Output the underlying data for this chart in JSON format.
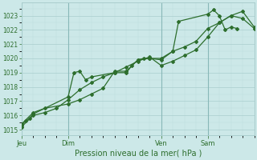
{
  "background_color": "#cce8e8",
  "grid_color_major": "#aacece",
  "grid_color_minor": "#bbdddd",
  "line_color": "#2d6e2d",
  "spine_color": "#aacece",
  "ylabel_ticks": [
    1015,
    1016,
    1017,
    1018,
    1019,
    1020,
    1021,
    1022,
    1023
  ],
  "ylim": [
    1014.6,
    1023.9
  ],
  "xlabel": "Pression niveau de la mer( hPa )",
  "day_labels": [
    "Jeu",
    "Dim",
    "Ven",
    "Sam"
  ],
  "day_positions": [
    0,
    24,
    72,
    96
  ],
  "xlim": [
    0,
    120
  ],
  "series1_x": [
    0,
    2,
    4,
    6,
    24,
    27,
    30,
    33,
    36,
    48,
    54,
    57,
    60,
    63,
    66,
    72,
    78,
    81,
    96,
    99,
    102,
    105,
    108,
    111
  ],
  "series1_y": [
    1015.3,
    1015.6,
    1015.8,
    1016.1,
    1017.3,
    1019.0,
    1019.1,
    1018.5,
    1018.7,
    1019.0,
    1019.0,
    1019.5,
    1019.9,
    1020.0,
    1020.0,
    1019.9,
    1020.5,
    1022.6,
    1023.1,
    1023.4,
    1023.0,
    1022.0,
    1022.2,
    1022.1
  ],
  "series2_x": [
    0,
    6,
    12,
    18,
    24,
    30,
    36,
    42,
    48,
    54,
    60,
    66,
    72,
    78,
    84,
    90,
    96,
    102,
    108,
    114,
    120
  ],
  "series2_y": [
    1015.2,
    1016.0,
    1016.2,
    1016.5,
    1017.1,
    1017.8,
    1018.3,
    1018.7,
    1019.0,
    1019.4,
    1019.8,
    1020.1,
    1019.5,
    1019.8,
    1020.2,
    1020.6,
    1021.5,
    1022.5,
    1023.0,
    1022.8,
    1022.1
  ],
  "series3_x": [
    0,
    6,
    12,
    24,
    30,
    36,
    42,
    48,
    54,
    60,
    66,
    72,
    78,
    84,
    90,
    96,
    102,
    108,
    114,
    120
  ],
  "series3_y": [
    1015.4,
    1016.2,
    1016.5,
    1016.8,
    1017.1,
    1017.5,
    1017.9,
    1019.1,
    1019.1,
    1019.9,
    1020.0,
    1020.0,
    1020.5,
    1020.8,
    1021.2,
    1022.1,
    1022.5,
    1023.0,
    1023.3,
    1022.2
  ]
}
